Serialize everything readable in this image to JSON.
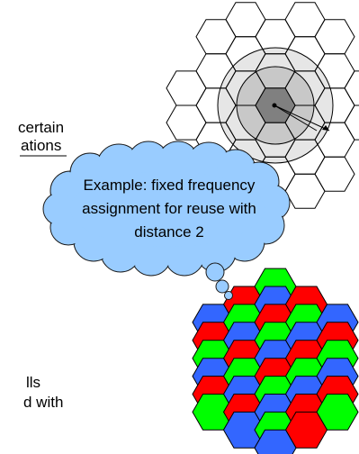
{
  "fragments": {
    "line1": "certain",
    "line2": "ations",
    "line3": "lls",
    "line4": "d with"
  },
  "cloud": {
    "lines": [
      "Example: fixed frequency",
      "assignment for reuse with",
      "distance 2"
    ],
    "fill": "#99ccff",
    "stroke": "#1a1a1a"
  },
  "reuse_pattern": {
    "colors": {
      "R": "#ff0000",
      "G": "#00ff00",
      "B": "#3366ff"
    },
    "rows": [
      "..G..",
      ".RBR.",
      "BGRGB",
      "RBGBR",
      "GRBRG",
      "BGRGB",
      "RBGBR",
      "GRBRG",
      ".BGR.",
      "..B.."
    ]
  },
  "interference_grid": {
    "ring_fills": [
      "#e6e6e6",
      "#c8c8c8",
      "#808080"
    ]
  }
}
